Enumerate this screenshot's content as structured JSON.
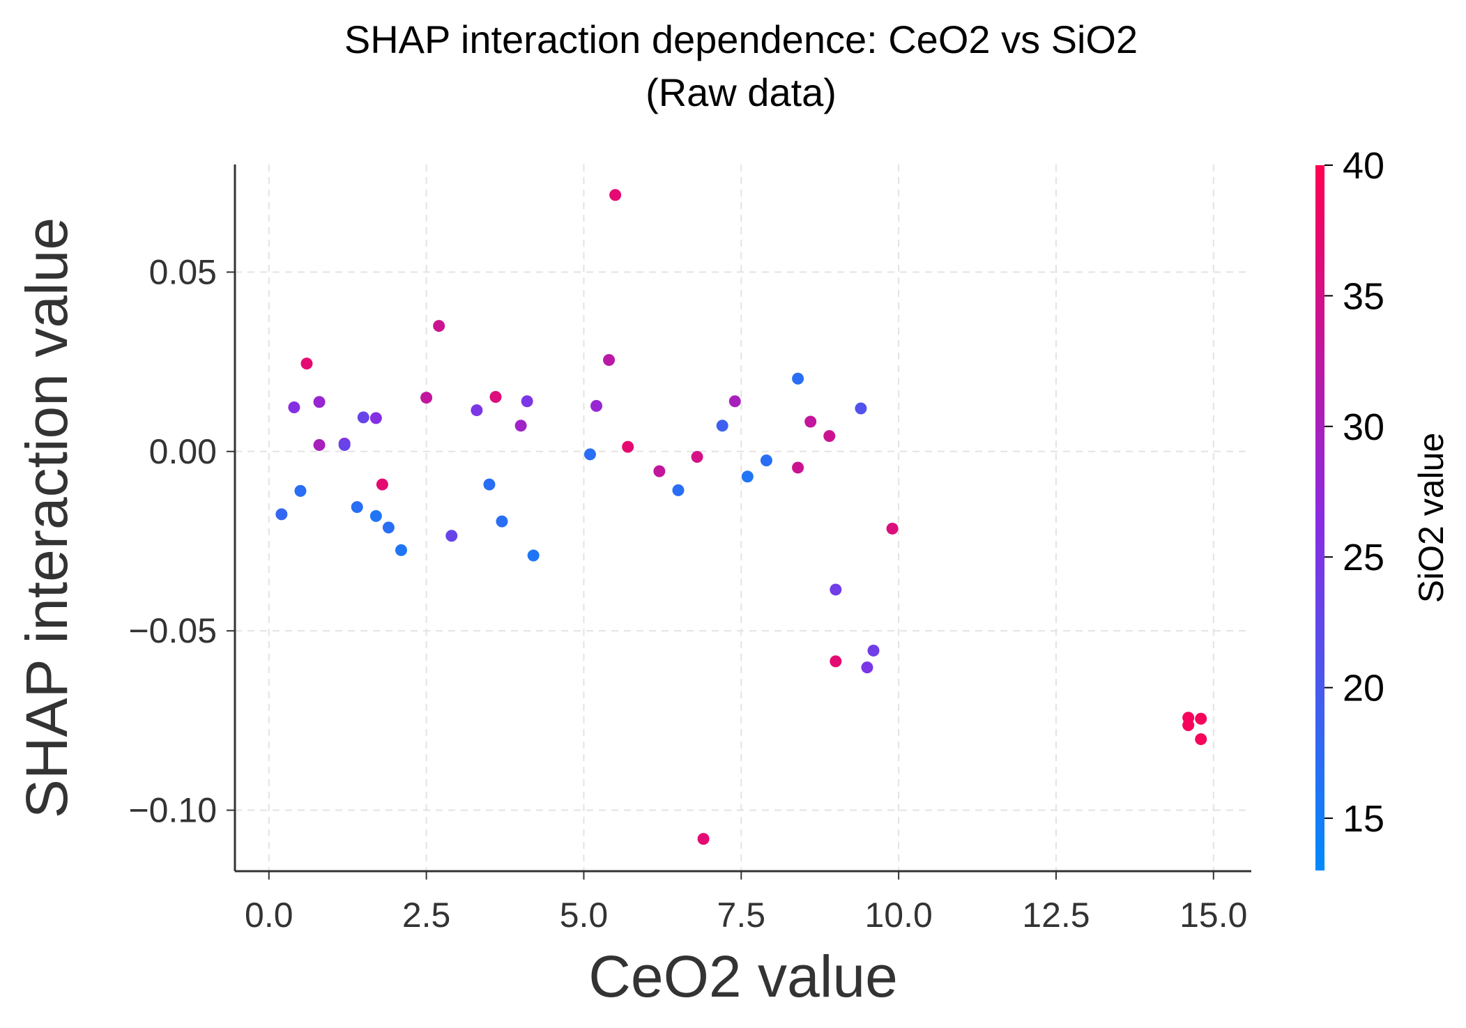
{
  "chart_data": {
    "type": "scatter",
    "title": [
      "SHAP interaction dependence: CeO2 vs SiO2",
      "(Raw data)"
    ],
    "xlabel": "CeO2 value",
    "ylabel": "SHAP interaction value",
    "xlim": [
      -0.54,
      15.6
    ],
    "ylim": [
      -0.117,
      0.08
    ],
    "xticks": [
      0.0,
      2.5,
      5.0,
      7.5,
      10.0,
      12.5,
      15.0
    ],
    "xtick_labels": [
      "0.0",
      "2.5",
      "5.0",
      "7.5",
      "10.0",
      "12.5",
      "15.0"
    ],
    "yticks": [
      0.05,
      0.0,
      -0.05,
      -0.1
    ],
    "ytick_labels": [
      "0.05",
      "0.00",
      "−0.05",
      "−0.10"
    ],
    "grid": true,
    "colorbar": {
      "label": "SiO2 value",
      "range": [
        13,
        40
      ],
      "ticks": [
        15,
        20,
        25,
        30,
        35,
        40
      ],
      "tick_labels": [
        "15",
        "20",
        "25",
        "30",
        "35",
        "40"
      ],
      "color_low": "#008afb",
      "color_mid": "#8a2be2",
      "color_high": "#ff0051"
    },
    "points": [
      {
        "x": 0.2,
        "y": -0.0175,
        "c": 18
      },
      {
        "x": 0.4,
        "y": 0.0123,
        "c": 26
      },
      {
        "x": 0.5,
        "y": -0.011,
        "c": 17
      },
      {
        "x": 0.6,
        "y": 0.0245,
        "c": 37
      },
      {
        "x": 0.8,
        "y": 0.0138,
        "c": 28
      },
      {
        "x": 0.8,
        "y": 0.0018,
        "c": 30
      },
      {
        "x": 1.2,
        "y": 0.0022,
        "c": 27
      },
      {
        "x": 1.2,
        "y": 0.0018,
        "c": 23
      },
      {
        "x": 1.4,
        "y": -0.0155,
        "c": 17
      },
      {
        "x": 1.5,
        "y": 0.0095,
        "c": 23
      },
      {
        "x": 1.7,
        "y": 0.0093,
        "c": 26
      },
      {
        "x": 1.7,
        "y": -0.018,
        "c": 16
      },
      {
        "x": 1.8,
        "y": -0.0092,
        "c": 37
      },
      {
        "x": 1.9,
        "y": -0.0212,
        "c": 17
      },
      {
        "x": 2.1,
        "y": -0.0275,
        "c": 16
      },
      {
        "x": 2.5,
        "y": 0.015,
        "c": 33
      },
      {
        "x": 2.7,
        "y": 0.035,
        "c": 34
      },
      {
        "x": 2.9,
        "y": -0.0235,
        "c": 23
      },
      {
        "x": 3.3,
        "y": 0.0115,
        "c": 25
      },
      {
        "x": 3.5,
        "y": -0.0092,
        "c": 17
      },
      {
        "x": 3.6,
        "y": 0.0152,
        "c": 36
      },
      {
        "x": 3.7,
        "y": -0.0195,
        "c": 17
      },
      {
        "x": 4.0,
        "y": 0.0072,
        "c": 29
      },
      {
        "x": 4.1,
        "y": 0.014,
        "c": 25
      },
      {
        "x": 4.2,
        "y": -0.029,
        "c": 16
      },
      {
        "x": 5.1,
        "y": -0.0008,
        "c": 17
      },
      {
        "x": 5.2,
        "y": 0.0127,
        "c": 28
      },
      {
        "x": 5.4,
        "y": 0.0255,
        "c": 32
      },
      {
        "x": 5.5,
        "y": 0.0715,
        "c": 37
      },
      {
        "x": 5.7,
        "y": 0.0013,
        "c": 37
      },
      {
        "x": 6.2,
        "y": -0.0055,
        "c": 33
      },
      {
        "x": 6.5,
        "y": -0.0108,
        "c": 17
      },
      {
        "x": 6.8,
        "y": -0.0015,
        "c": 35
      },
      {
        "x": 6.9,
        "y": -0.108,
        "c": 37
      },
      {
        "x": 7.2,
        "y": 0.0072,
        "c": 19
      },
      {
        "x": 7.4,
        "y": 0.014,
        "c": 30
      },
      {
        "x": 7.6,
        "y": -0.007,
        "c": 16
      },
      {
        "x": 7.9,
        "y": -0.0025,
        "c": 17
      },
      {
        "x": 8.4,
        "y": 0.0203,
        "c": 17
      },
      {
        "x": 8.4,
        "y": -0.0045,
        "c": 34
      },
      {
        "x": 8.6,
        "y": 0.0083,
        "c": 33
      },
      {
        "x": 8.9,
        "y": 0.0043,
        "c": 34
      },
      {
        "x": 9.0,
        "y": -0.0385,
        "c": 24
      },
      {
        "x": 9.0,
        "y": -0.0585,
        "c": 37
      },
      {
        "x": 9.4,
        "y": 0.012,
        "c": 21
      },
      {
        "x": 9.5,
        "y": -0.0602,
        "c": 25
      },
      {
        "x": 9.6,
        "y": -0.0555,
        "c": 24
      },
      {
        "x": 9.9,
        "y": -0.0215,
        "c": 36
      },
      {
        "x": 14.6,
        "y": -0.0742,
        "c": 39
      },
      {
        "x": 14.6,
        "y": -0.0763,
        "c": 39
      },
      {
        "x": 14.8,
        "y": -0.0745,
        "c": 39
      },
      {
        "x": 14.8,
        "y": -0.0802,
        "c": 39
      }
    ]
  }
}
